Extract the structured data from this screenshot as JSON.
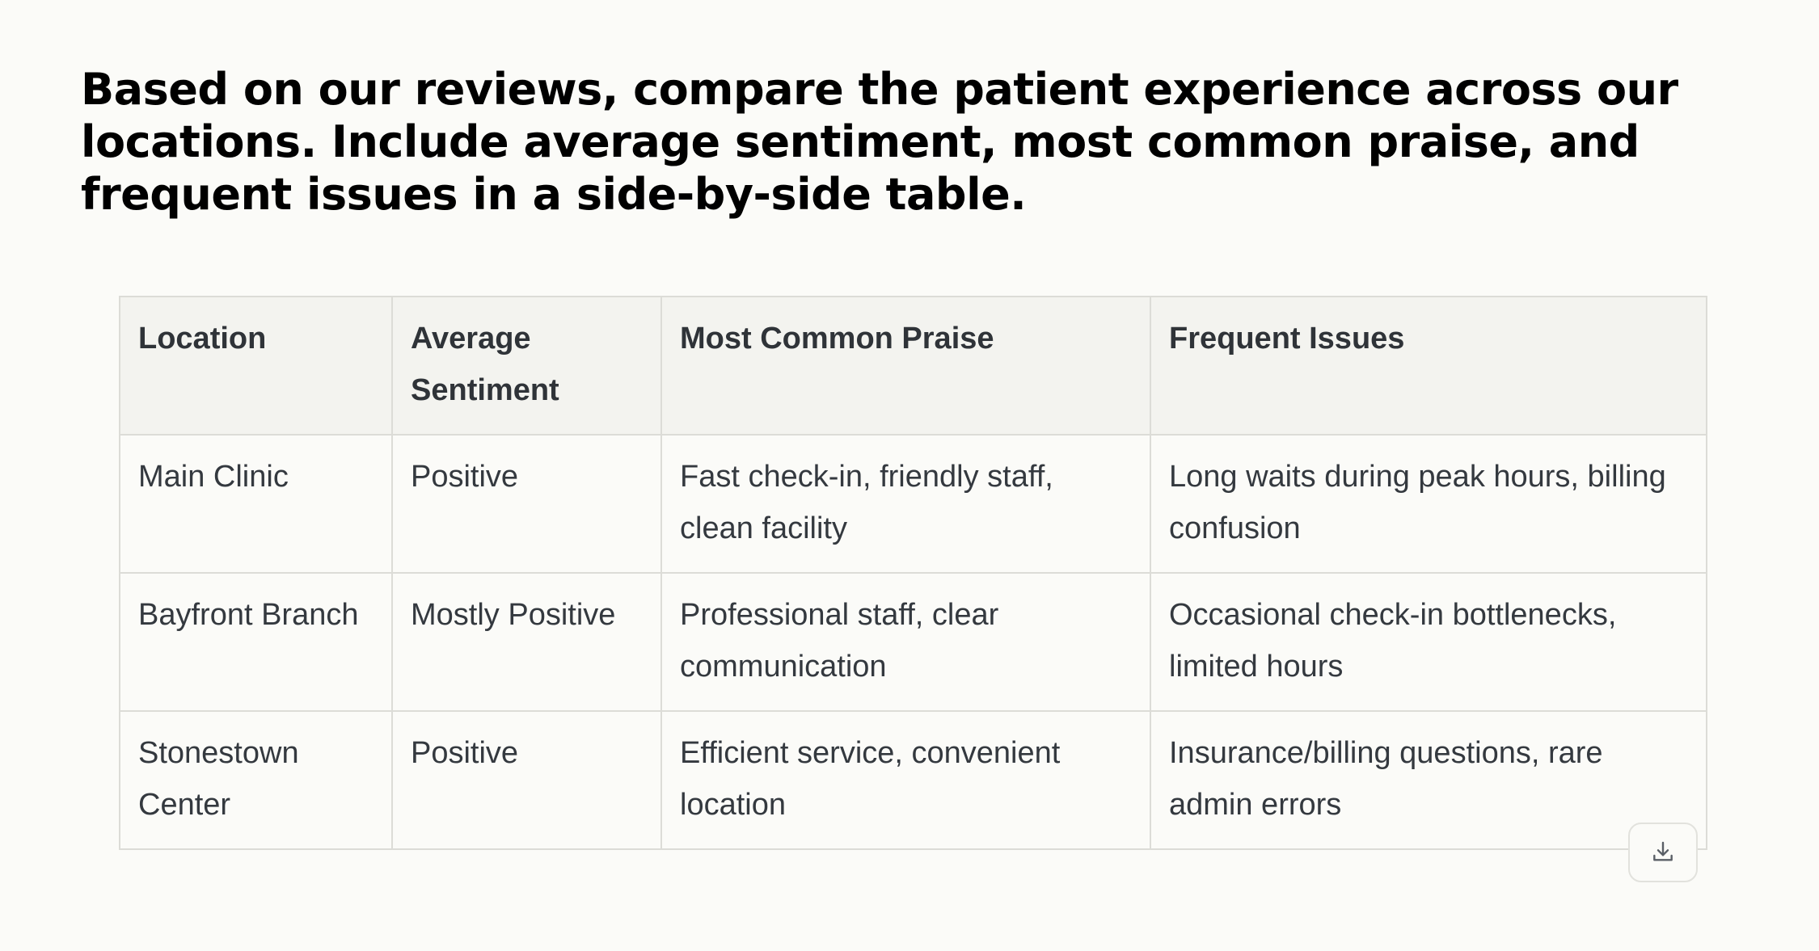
{
  "prompt": {
    "text": "Based on our reviews, compare the patient experience across our locations. Include average sentiment, most common praise, and frequent issues in a side-by-side table."
  },
  "table": {
    "headers": [
      "Location",
      "Average Sentiment",
      "Most Common Praise",
      "Frequent Issues"
    ],
    "rows": [
      [
        "Main Clinic",
        "Positive",
        "Fast check-in, friendly staff, clean facility",
        "Long waits during peak hours, billing confusion"
      ],
      [
        "Bayfront Branch",
        "Mostly Positive",
        "Professional staff, clear communication",
        "Occasional check-in bottlenecks, limited hours"
      ],
      [
        "Stonestown Center",
        "Positive",
        "Efficient service, convenient location",
        "Insurance/billing questions, rare admin errors"
      ]
    ]
  },
  "actions": {
    "download_icon": "download-icon"
  },
  "colors": {
    "background": "#fbfbf8",
    "header_bg": "#f3f3ef",
    "border": "#dcdcd7",
    "text": "#34393f"
  }
}
